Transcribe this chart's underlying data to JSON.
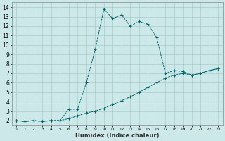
{
  "xlabel": "Humidex (Indice chaleur)",
  "bg_color": "#cce8e8",
  "grid_color": "#aacccc",
  "line_color": "#006666",
  "xlim": [
    -0.5,
    23.5
  ],
  "ylim": [
    1.5,
    14.5
  ],
  "xtick_labels": [
    "0",
    "1",
    "2",
    "3",
    "4",
    "5",
    "6",
    "7",
    "8",
    "9",
    "10",
    "11",
    "12",
    "13",
    "14",
    "15",
    "16",
    "17",
    "18",
    "19",
    "20",
    "21",
    "22",
    "23"
  ],
  "ytick_labels": [
    "2",
    "3",
    "4",
    "5",
    "6",
    "7",
    "8",
    "9",
    "10",
    "11",
    "12",
    "13",
    "14"
  ],
  "ytick_vals": [
    2,
    3,
    4,
    5,
    6,
    7,
    8,
    9,
    10,
    11,
    12,
    13,
    14
  ],
  "curve1_x": [
    0,
    1,
    2,
    3,
    4,
    5,
    6,
    7,
    8,
    9,
    10,
    11,
    12,
    13,
    14,
    15,
    16,
    17,
    18,
    19,
    20,
    21,
    22,
    23
  ],
  "curve1_y": [
    2.0,
    1.9,
    2.0,
    1.9,
    2.0,
    2.0,
    2.2,
    2.5,
    2.8,
    3.0,
    3.3,
    3.7,
    4.1,
    4.5,
    5.0,
    5.5,
    6.0,
    6.5,
    6.8,
    7.0,
    6.8,
    7.0,
    7.3,
    7.5
  ],
  "curve2_x": [
    0,
    1,
    2,
    3,
    4,
    5,
    6,
    7,
    8,
    9,
    10,
    11,
    12,
    13,
    14,
    15,
    16,
    17,
    18,
    19,
    20,
    21,
    22,
    23
  ],
  "curve2_y": [
    2.0,
    1.9,
    2.0,
    1.9,
    2.0,
    2.0,
    3.2,
    3.2,
    6.0,
    9.5,
    13.8,
    12.8,
    13.2,
    12.0,
    12.5,
    12.2,
    10.8,
    7.0,
    7.3,
    7.2,
    6.8,
    7.0,
    7.3,
    7.5
  ]
}
